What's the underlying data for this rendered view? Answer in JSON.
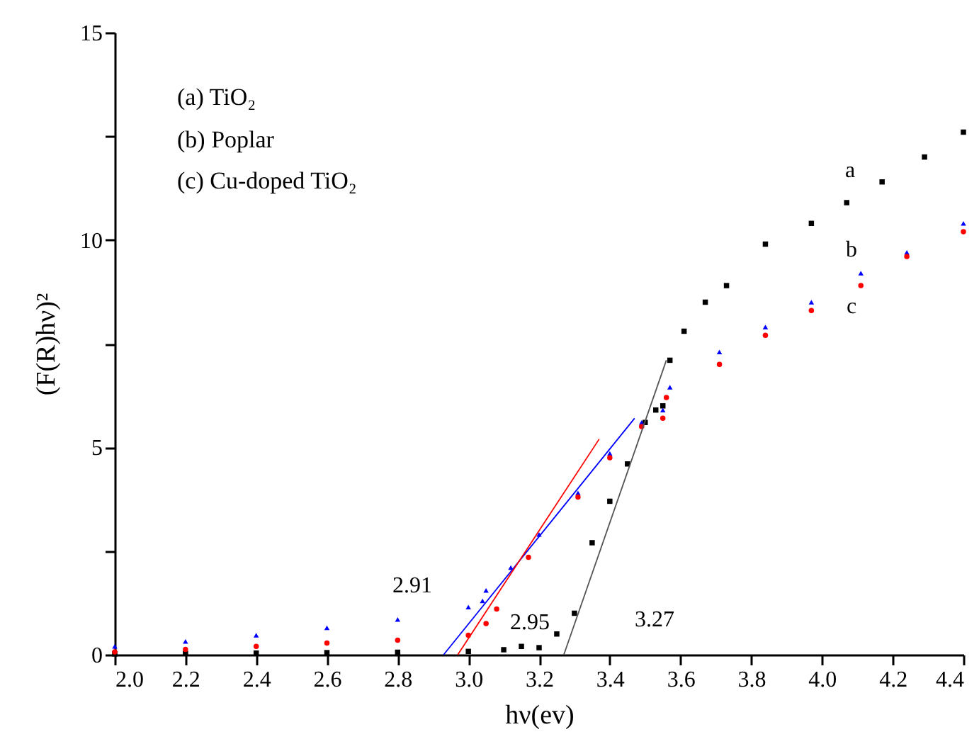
{
  "chart_data": {
    "type": "scatter",
    "xlabel": "hν(ev)",
    "ylabel": "(F(R)hν)²",
    "xlim": [
      2.0,
      4.4
    ],
    "ylim": [
      0,
      15
    ],
    "xticks": [
      {
        "value": 2.0,
        "label": "2.0"
      },
      {
        "value": 2.2,
        "label": "2.2"
      },
      {
        "value": 2.4,
        "label": "2.4"
      },
      {
        "value": 2.6,
        "label": "2.6"
      },
      {
        "value": 2.8,
        "label": "2.8"
      },
      {
        "value": 3.0,
        "label": "3.0"
      },
      {
        "value": 3.2,
        "label": "3.2"
      },
      {
        "value": 3.4,
        "label": "3.4"
      },
      {
        "value": 3.6,
        "label": "3.6"
      },
      {
        "value": 3.8,
        "label": "3.8"
      },
      {
        "value": 4.0,
        "label": "4.0"
      },
      {
        "value": 4.2,
        "label": "4.2"
      },
      {
        "value": 4.4,
        "label": "4.4"
      }
    ],
    "yticks": [
      0,
      {
        "value": 2.5,
        "label": null
      },
      5,
      {
        "value": 7.5,
        "label": null
      },
      10,
      {
        "value": 12.5,
        "label": null
      },
      15
    ],
    "series": [
      {
        "marker": "square",
        "color": "#000000",
        "x": [
          2.0,
          2.2,
          2.4,
          2.6,
          2.8,
          3.0,
          3.1,
          3.15,
          3.2,
          3.25,
          3.3,
          3.35,
          3.4,
          3.45,
          3.5,
          3.53,
          3.55,
          3.57,
          3.61,
          3.67,
          3.73,
          3.84,
          3.97,
          4.07,
          4.17,
          4.29,
          4.4
        ],
        "values": [
          0.02,
          0.03,
          0.04,
          0.05,
          0.06,
          0.08,
          0.12,
          0.2,
          0.17,
          0.5,
          1.0,
          2.7,
          3.7,
          4.6,
          5.6,
          5.9,
          6.0,
          7.1,
          7.8,
          8.5,
          8.9,
          9.9,
          10.4,
          10.9,
          11.4,
          12.0,
          12.6
        ]
      },
      {
        "marker": "triangle",
        "color": "#0000ff",
        "x": [
          2.0,
          2.2,
          2.4,
          2.6,
          2.8,
          3.0,
          3.04,
          3.05,
          3.12,
          3.2,
          3.31,
          3.4,
          3.49,
          3.55,
          3.57,
          3.71,
          3.84,
          3.97,
          4.11,
          4.24,
          4.4
        ],
        "values": [
          0.2,
          0.32,
          0.47,
          0.65,
          0.85,
          1.15,
          1.3,
          1.55,
          2.1,
          2.9,
          3.9,
          4.85,
          5.6,
          5.9,
          6.45,
          7.3,
          7.9,
          8.5,
          9.2,
          9.7,
          10.4
        ]
      },
      {
        "marker": "circle",
        "color": "#ff0000",
        "x": [
          2.0,
          2.2,
          2.4,
          2.6,
          2.8,
          3.0,
          3.05,
          3.08,
          3.17,
          3.31,
          3.4,
          3.49,
          3.55,
          3.56,
          3.71,
          3.84,
          3.97,
          4.11,
          4.24,
          4.4
        ],
        "values": [
          0.07,
          0.13,
          0.2,
          0.28,
          0.35,
          0.47,
          0.75,
          1.1,
          2.35,
          3.8,
          4.75,
          5.5,
          5.7,
          6.2,
          7.0,
          7.7,
          8.3,
          8.9,
          9.6,
          10.2
        ]
      },
      {
        "type": "line",
        "color": "#555555",
        "x": [
          3.27,
          3.56
        ],
        "values": [
          0,
          7.1
        ]
      },
      {
        "type": "line",
        "color": "#0000ff",
        "x": [
          2.93,
          3.47
        ],
        "values": [
          0,
          5.7
        ]
      },
      {
        "type": "line",
        "color": "#ff0000",
        "x": [
          2.97,
          3.37
        ],
        "values": [
          0,
          5.2
        ]
      }
    ],
    "annotations": [
      "(a) TiO₂",
      "(b) Poplar",
      "(c) Cu-doped TiO₂",
      "a",
      "b",
      "c",
      "2.91",
      "2.95",
      "3.27"
    ]
  }
}
